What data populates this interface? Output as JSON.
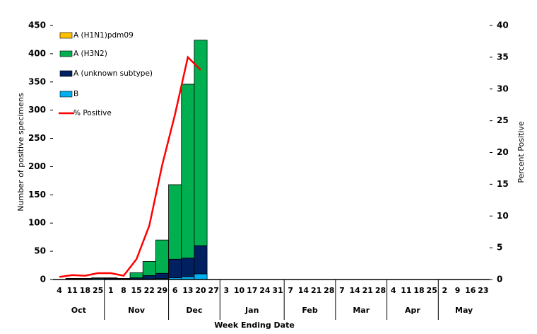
{
  "chart_data": {
    "type": "bar",
    "x_label": "Week Ending Date",
    "y_label": "Number of positive specimens",
    "y2_label": "Percent Positive",
    "category_groups": [
      {
        "label": "Oct",
        "categories": [
          "4",
          "11",
          "18",
          "25"
        ]
      },
      {
        "label": "Nov",
        "categories": [
          "1",
          "8",
          "15",
          "22",
          "29"
        ]
      },
      {
        "label": "Dec",
        "categories": [
          "6",
          "13",
          "20",
          "27"
        ]
      },
      {
        "label": "Jan",
        "categories": [
          "3",
          "10",
          "17",
          "24",
          "31"
        ]
      },
      {
        "label": "Feb",
        "categories": [
          "7",
          "14",
          "21",
          "28"
        ]
      },
      {
        "label": "Mar",
        "categories": [
          "7",
          "14",
          "21",
          "28"
        ]
      },
      {
        "label": "Apr",
        "categories": [
          "4",
          "11",
          "18",
          "25"
        ]
      },
      {
        "label": "May",
        "categories": [
          "2",
          "9",
          "16",
          "23"
        ]
      }
    ],
    "series": [
      {
        "name": "A (H1N1)pdm09",
        "color": "#ffc000",
        "values": [
          0,
          0,
          0,
          0,
          0,
          0,
          0,
          0,
          0,
          0,
          0,
          0,
          null,
          null,
          null,
          null,
          null,
          null,
          null,
          null,
          null,
          null,
          null,
          null,
          null,
          null,
          null,
          null,
          null,
          null,
          null,
          null,
          null,
          null
        ]
      },
      {
        "name": "A (H3N2)",
        "color": "#00b050",
        "values": [
          0,
          0,
          0,
          0,
          1,
          1,
          9,
          25,
          59,
          132,
          308,
          364,
          null,
          null,
          null,
          null,
          null,
          null,
          null,
          null,
          null,
          null,
          null,
          null,
          null,
          null,
          null,
          null,
          null,
          null,
          null,
          null,
          null,
          null
        ]
      },
      {
        "name": "A (unknown subtype)",
        "color": "#002060",
        "values": [
          0,
          1,
          1,
          1,
          2,
          1,
          2,
          6,
          9,
          33,
          33,
          50,
          null,
          null,
          null,
          null,
          null,
          null,
          null,
          null,
          null,
          null,
          null,
          null,
          null,
          null,
          null,
          null,
          null,
          null,
          null,
          null,
          null,
          null
        ]
      },
      {
        "name": "B",
        "color": "#00b0f0",
        "values": [
          0,
          1,
          1,
          2,
          0,
          0,
          1,
          1,
          2,
          3,
          5,
          10,
          null,
          null,
          null,
          null,
          null,
          null,
          null,
          null,
          null,
          null,
          null,
          null,
          null,
          null,
          null,
          null,
          null,
          null,
          null,
          null,
          null,
          null
        ]
      },
      {
        "name": "% Positive",
        "color": "#ff0000",
        "type": "line",
        "axis": "y2",
        "values": [
          0.4,
          0.7,
          0.6,
          1.0,
          1.0,
          0.6,
          3.2,
          8.5,
          18,
          26,
          35,
          33,
          null,
          null,
          null,
          null,
          null,
          null,
          null,
          null,
          null,
          null,
          null,
          null,
          null,
          null,
          null,
          null,
          null,
          null,
          null,
          null,
          null,
          null
        ]
      }
    ],
    "stack_order": [
      3,
      2,
      1,
      0
    ],
    "ylim": [
      0,
      450
    ],
    "yticks": [
      0,
      50,
      100,
      150,
      200,
      250,
      300,
      350,
      400,
      450
    ],
    "y2lim": [
      0,
      40
    ],
    "y2ticks": [
      0,
      5,
      10,
      15,
      20,
      25,
      30,
      35,
      40
    ],
    "legend": "top-left"
  }
}
